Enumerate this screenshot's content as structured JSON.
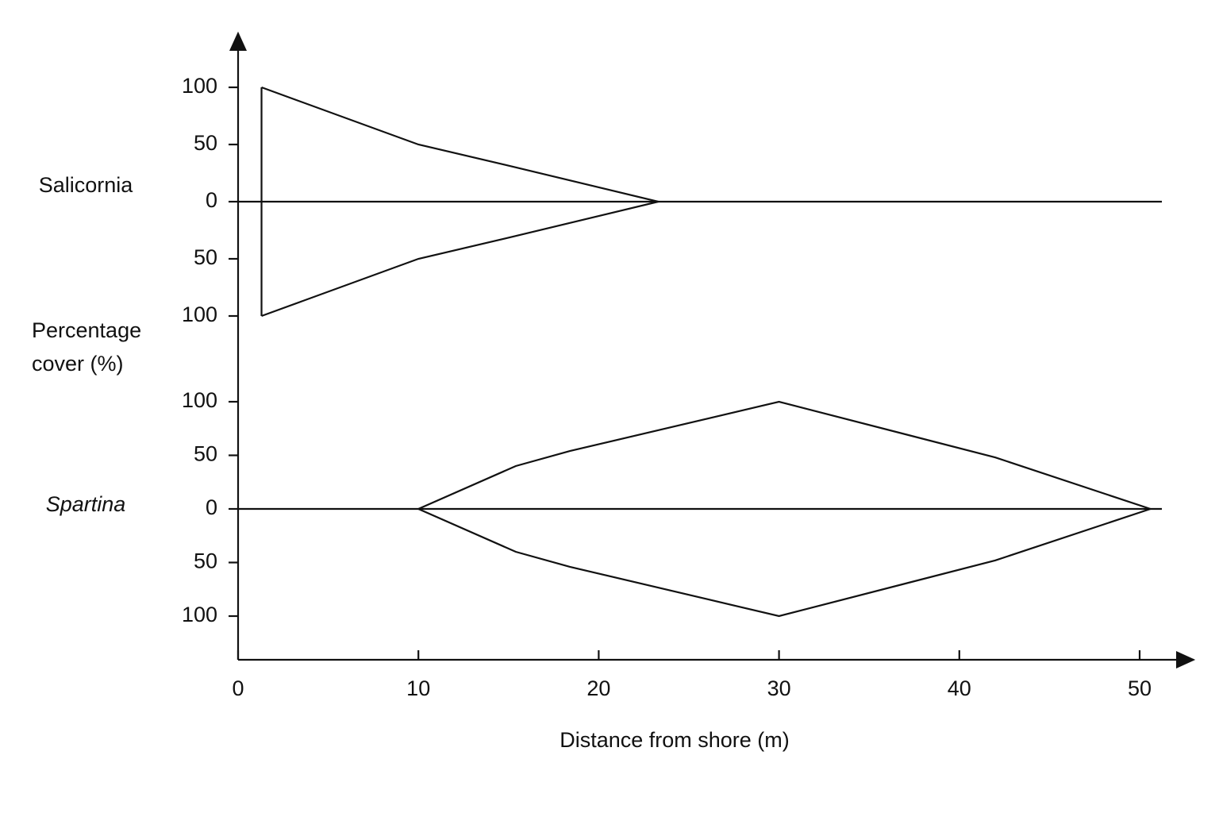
{
  "chart_data": {
    "type": "kite",
    "xlabel": "Distance from shore (m)",
    "ylabel": "Percentage cover (%)",
    "xlim": [
      0,
      53
    ],
    "xticks": [
      0,
      10,
      20,
      30,
      40,
      50
    ],
    "ylim": [
      -100,
      100
    ],
    "yticks": [
      100,
      50,
      0,
      {
        "value": -50,
        "label": "50"
      },
      {
        "value": -100,
        "label": "100"
      }
    ],
    "series": [
      {
        "name": "Salicornia",
        "font_style": "normal",
        "color": "#111111",
        "x": [
          1.3,
          10,
          15.4,
          23.3
        ],
        "values": [
          100,
          50,
          30,
          0
        ]
      },
      {
        "name": "Spartina",
        "font_style": "italic",
        "color": "#111111",
        "x": [
          10,
          15.4,
          18.4,
          30,
          42,
          50.6
        ],
        "values": [
          0,
          40,
          54,
          100,
          48,
          0
        ]
      }
    ]
  }
}
